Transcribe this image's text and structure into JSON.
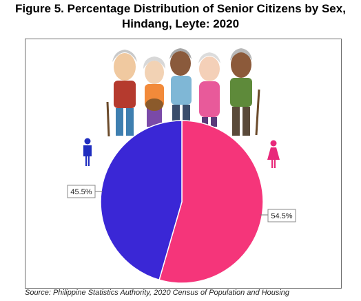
{
  "title_line1": "Figure 5. Percentage Distribution of Senior Citizens by Sex,",
  "title_line2": "Hindang, Leyte: 2020",
  "source": "Source: Philippine Statistics Authority, 2020 Census of Population and Housing",
  "chart_data": {
    "type": "pie",
    "title": "Figure 5. Percentage Distribution of Senior Citizens by Sex, Hindang, Leyte: 2020",
    "slices": [
      {
        "value": 54.5,
        "label": "54.5%",
        "color": "#f5357a",
        "icon": "female-icon"
      },
      {
        "value": 45.5,
        "label": "45.5%",
        "color": "#3a27d6",
        "icon": "male-icon"
      }
    ],
    "start_angle_deg": 0,
    "direction": "clockwise",
    "legend": "icons beside slices"
  },
  "colors": {
    "male_icon": "#1f2dbf",
    "female_icon": "#e8287a"
  },
  "illustration": "senior-citizens-group"
}
